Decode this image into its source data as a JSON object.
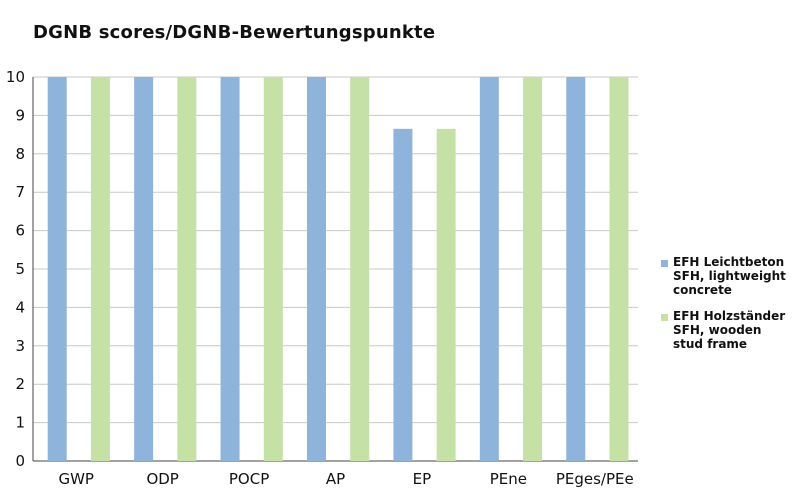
{
  "chart_data": {
    "type": "bar",
    "title": "DGNB scores/DGNB-Bewertungspunkte",
    "xlabel": "",
    "ylabel": "",
    "categories": [
      "GWP",
      "ODP",
      "POCP",
      "AP",
      "EP",
      "PEne",
      "PEges/PEe"
    ],
    "ylim": [
      0,
      10
    ],
    "yticks": [
      "0",
      "1",
      "2",
      "3",
      "4",
      "5",
      "6",
      "7",
      "8",
      "9",
      "10"
    ],
    "grid": true,
    "legend_position": "right",
    "series": [
      {
        "name": "EFH Leichtbeton SFH, lightweight concrete",
        "name_lines": [
          "EFH Leichtbeton",
          "SFH, lightweight",
          "concrete"
        ],
        "color": "#8fb4db",
        "values": [
          10,
          10,
          10,
          10,
          8.65,
          10,
          10
        ]
      },
      {
        "name": "EFH Holzständer SFH, wooden stud frame",
        "name_lines": [
          "EFH Holzständer",
          "SFH, wooden",
          "stud frame"
        ],
        "color": "#c6e1a6",
        "values": [
          10,
          10,
          10,
          10,
          8.65,
          10,
          10
        ]
      }
    ]
  }
}
